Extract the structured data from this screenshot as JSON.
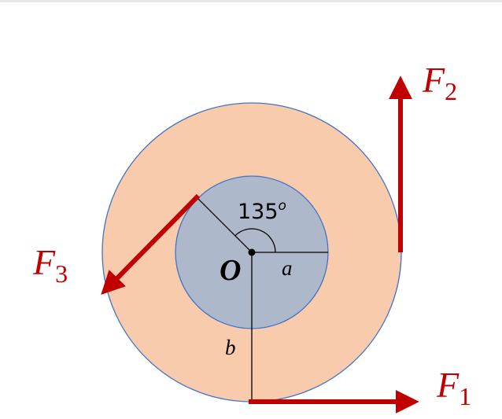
{
  "diagram": {
    "origin_label": "O",
    "angle": {
      "value": "135",
      "unit": "o"
    },
    "radius_labels": {
      "inner": "a",
      "outer": "b"
    },
    "forces": [
      {
        "name": "F",
        "subscript": "1",
        "direction": "right"
      },
      {
        "name": "F",
        "subscript": "2",
        "direction": "up"
      },
      {
        "name": "F",
        "subscript": "3",
        "direction": "down-left"
      }
    ],
    "colors": {
      "outer_disk": "#f8cbad",
      "inner_disk": "#adb9ca",
      "disk_stroke": "#4472c4",
      "force_arrow": "#c00000",
      "line": "#000000"
    }
  }
}
